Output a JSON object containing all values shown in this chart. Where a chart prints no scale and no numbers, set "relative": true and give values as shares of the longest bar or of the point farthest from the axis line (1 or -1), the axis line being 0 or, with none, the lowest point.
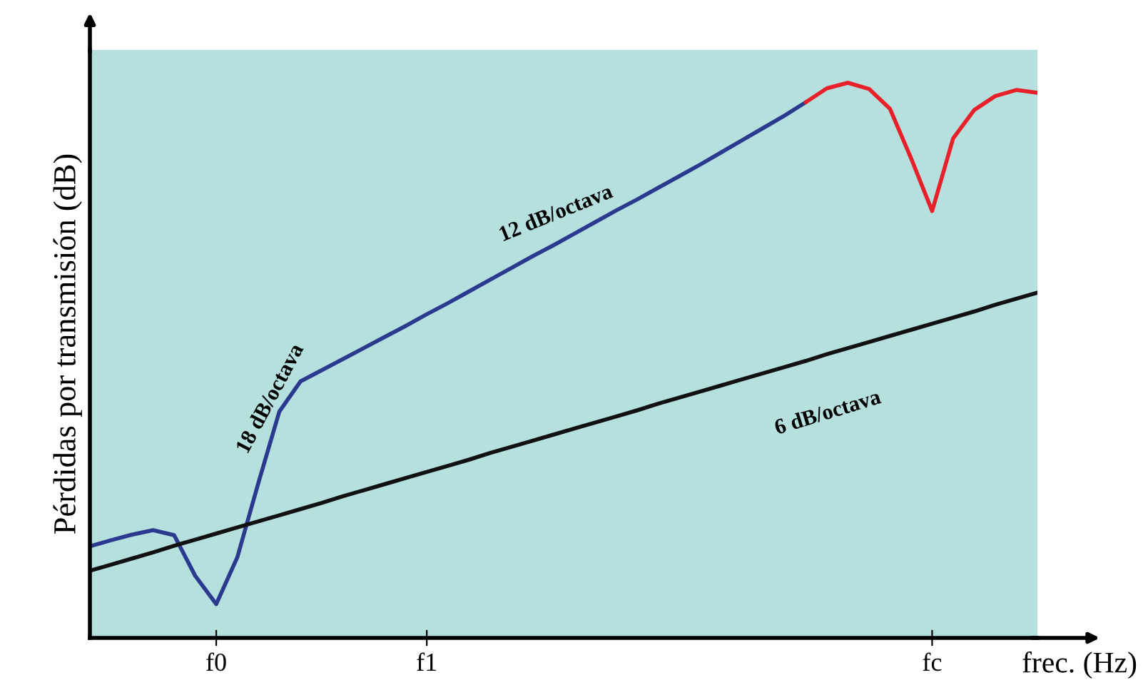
{
  "chart_data": {
    "type": "line",
    "relative": true,
    "xlabel": "frec. (Hz)",
    "ylabel": "Pérdidas por transmisión (dB)",
    "categories": [
      null,
      null,
      null,
      null,
      null,
      null,
      "f0",
      null,
      null,
      null,
      null,
      null,
      null,
      null,
      null,
      null,
      "f1",
      null,
      null,
      null,
      null,
      null,
      null,
      null,
      null,
      null,
      null,
      null,
      null,
      null,
      null,
      null,
      null,
      null,
      null,
      null,
      null,
      null,
      null,
      null,
      "fc",
      null,
      null,
      null,
      null,
      null
    ],
    "tick_labels": "x",
    "line_style": "solid",
    "marker": "none",
    "series": [
      {
        "color": "#2b3a8f",
        "values": [
          0.165,
          0.176,
          0.186,
          0.194,
          0.185,
          0.112,
          0.061,
          0.145,
          0.279,
          0.408,
          0.462,
          0.482,
          0.502,
          0.522,
          0.542,
          0.562,
          0.583,
          0.603,
          0.624,
          0.645,
          0.666,
          0.687,
          0.707,
          0.728,
          0.749,
          0.77,
          0.79,
          0.811,
          0.832,
          0.853,
          0.875,
          0.897,
          0.919,
          0.941,
          0.965,
          null,
          null,
          null,
          null,
          null,
          null,
          null,
          null,
          null,
          null,
          null
        ]
      },
      {
        "color": "#e8202a",
        "values": [
          null,
          null,
          null,
          null,
          null,
          null,
          null,
          null,
          null,
          null,
          null,
          null,
          null,
          null,
          null,
          null,
          null,
          null,
          null,
          null,
          null,
          null,
          null,
          null,
          null,
          null,
          null,
          null,
          null,
          null,
          null,
          null,
          null,
          null,
          0.965,
          0.99,
          1.0,
          0.989,
          0.953,
          0.864,
          0.769,
          0.9,
          0.951,
          0.976,
          0.987,
          0.982
        ]
      },
      {
        "color": "#111111",
        "values": [
          0.121,
          0.132,
          0.143,
          0.154,
          0.166,
          0.177,
          0.188,
          0.199,
          0.21,
          0.221,
          0.232,
          0.243,
          0.255,
          0.266,
          0.277,
          0.288,
          0.299,
          0.31,
          0.321,
          0.333,
          0.344,
          0.355,
          0.366,
          0.377,
          0.388,
          0.399,
          0.41,
          0.422,
          0.433,
          0.444,
          0.455,
          0.466,
          0.477,
          0.488,
          0.499,
          0.511,
          0.522,
          0.533,
          0.544,
          0.555,
          0.566,
          0.577,
          0.588,
          0.6,
          0.611,
          0.622
        ]
      }
    ],
    "annotations": [
      "12 dB/octava",
      "18 dB/octava",
      "6 dB/octava"
    ]
  }
}
